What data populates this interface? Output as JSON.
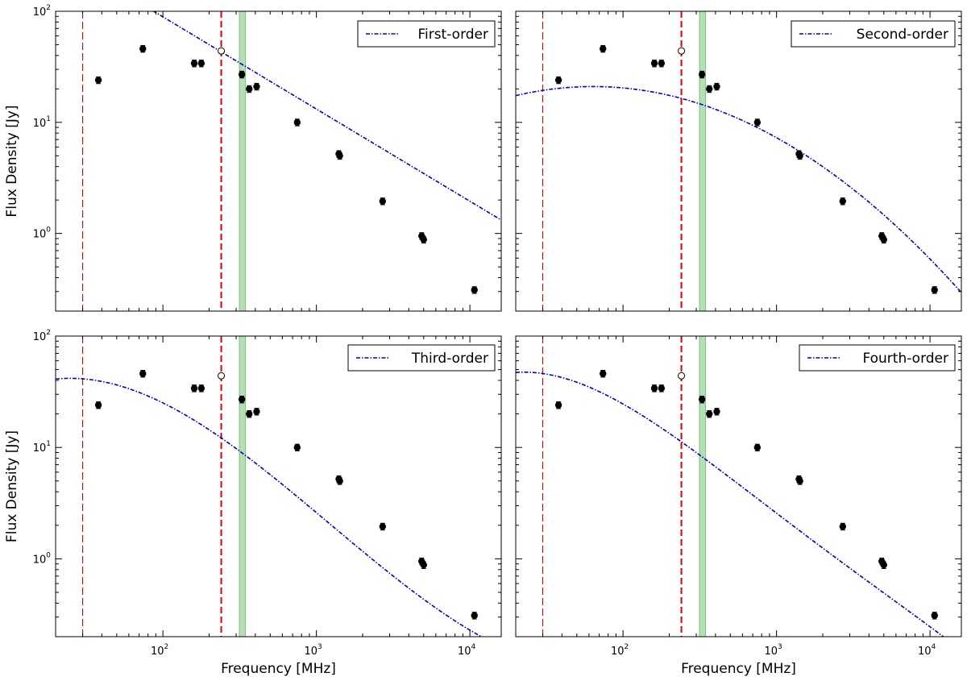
{
  "figure": {
    "xlabel": "Frequency [MHz]",
    "ylabel": "Flux Density [Jy]",
    "x_tick_labels": [
      {
        "base": "10",
        "exp": "2"
      },
      {
        "base": "10",
        "exp": "3"
      },
      {
        "base": "10",
        "exp": "4"
      }
    ],
    "y_tick_labels": [
      {
        "base": "10",
        "exp": "0"
      },
      {
        "base": "10",
        "exp": "1"
      },
      {
        "base": "10",
        "exp": "2"
      }
    ],
    "colors": {
      "fit": "#0000cc",
      "band_edge": "#dd0000",
      "green_band": "#5fb85f",
      "points": "#000000"
    }
  },
  "chart_data": [
    {
      "type": "scatter",
      "title": "",
      "legend": "First-order",
      "xlim": [
        20,
        16000
      ],
      "ylim": [
        0.2,
        100
      ],
      "xscale": "log",
      "yscale": "log",
      "measured_points": {
        "x": [
          38,
          74,
          160,
          178,
          327,
          365,
          408,
          750,
          1400,
          1420,
          2700,
          4850,
          5000,
          10700
        ],
        "y": [
          24,
          46,
          34,
          34,
          27,
          20,
          21,
          10,
          5.2,
          5.0,
          1.95,
          0.95,
          0.88,
          0.31
        ]
      },
      "open_points": {
        "x": [
          240
        ],
        "y": [
          44
        ]
      },
      "vertical_lines": [
        {
          "x": 30,
          "style": "thin-dashed"
        },
        {
          "x": 240,
          "style": "thick-dashed"
        }
      ],
      "shaded_band": [
        315,
        345
      ],
      "fit": {
        "x_range": [
          29,
          16000
        ],
        "log_coeffs": [
          1.95,
          -0.83
        ]
      }
    },
    {
      "type": "scatter",
      "title": "",
      "legend": "Second-order",
      "xlim": [
        20,
        16000
      ],
      "ylim": [
        0.2,
        100
      ],
      "xscale": "log",
      "yscale": "log",
      "measured_points": {
        "x": [
          38,
          74,
          160,
          178,
          327,
          365,
          408,
          750,
          1400,
          1420,
          2700,
          4850,
          5000,
          10700
        ],
        "y": [
          24,
          46,
          34,
          34,
          27,
          20,
          21,
          10,
          5.2,
          5.0,
          1.95,
          0.95,
          0.88,
          0.31
        ]
      },
      "open_points": {
        "x": [
          240
        ],
        "y": [
          44
        ]
      },
      "vertical_lines": [
        {
          "x": 30,
          "style": "thin-dashed"
        },
        {
          "x": 240,
          "style": "thick-dashed"
        }
      ],
      "shaded_band": [
        315,
        345
      ],
      "fit": {
        "x_range": [
          20,
          16000
        ],
        "log_coeffs": [
          1.31,
          -0.126,
          -0.322
        ]
      }
    },
    {
      "type": "scatter",
      "title": "",
      "legend": "Third-order",
      "xlim": [
        20,
        16000
      ],
      "ylim": [
        0.2,
        100
      ],
      "xscale": "log",
      "yscale": "log",
      "measured_points": {
        "x": [
          38,
          74,
          160,
          178,
          327,
          365,
          408,
          750,
          1400,
          1420,
          2700,
          4850,
          5000,
          10700
        ],
        "y": [
          24,
          46,
          34,
          34,
          27,
          20,
          21,
          10,
          5.2,
          5.0,
          1.95,
          0.95,
          0.88,
          0.31
        ]
      },
      "open_points": {
        "x": [
          240
        ],
        "y": [
          44
        ]
      },
      "vertical_lines": [
        {
          "x": 30,
          "style": "thin-dashed"
        },
        {
          "x": 240,
          "style": "thick-dashed"
        }
      ],
      "shaded_band": [
        315,
        345
      ],
      "fit": {
        "x_range": [
          20,
          16000
        ],
        "log_coeffs": [
          1.4,
          -0.68,
          -0.44,
          0.135
        ]
      }
    },
    {
      "type": "scatter",
      "title": "",
      "legend": "Fourth-order",
      "xlim": [
        20,
        16000
      ],
      "ylim": [
        0.2,
        100
      ],
      "xscale": "log",
      "yscale": "log",
      "measured_points": {
        "x": [
          38,
          74,
          160,
          178,
          327,
          365,
          408,
          750,
          1400,
          1420,
          2700,
          4850,
          5000,
          10700
        ],
        "y": [
          24,
          46,
          34,
          34,
          27,
          20,
          21,
          10,
          5.2,
          5.0,
          1.95,
          0.95,
          0.88,
          0.31
        ]
      },
      "open_points": {
        "x": [
          240
        ],
        "y": [
          44
        ]
      },
      "vertical_lines": [
        {
          "x": 30,
          "style": "thin-dashed"
        },
        {
          "x": 240,
          "style": "thick-dashed"
        }
      ],
      "shaded_band": [
        315,
        345
      ],
      "fit": {
        "x_range": [
          20,
          16000
        ],
        "log_coeffs": [
          1.39,
          -0.78,
          -0.37,
          0.21,
          -0.04
        ]
      }
    }
  ]
}
